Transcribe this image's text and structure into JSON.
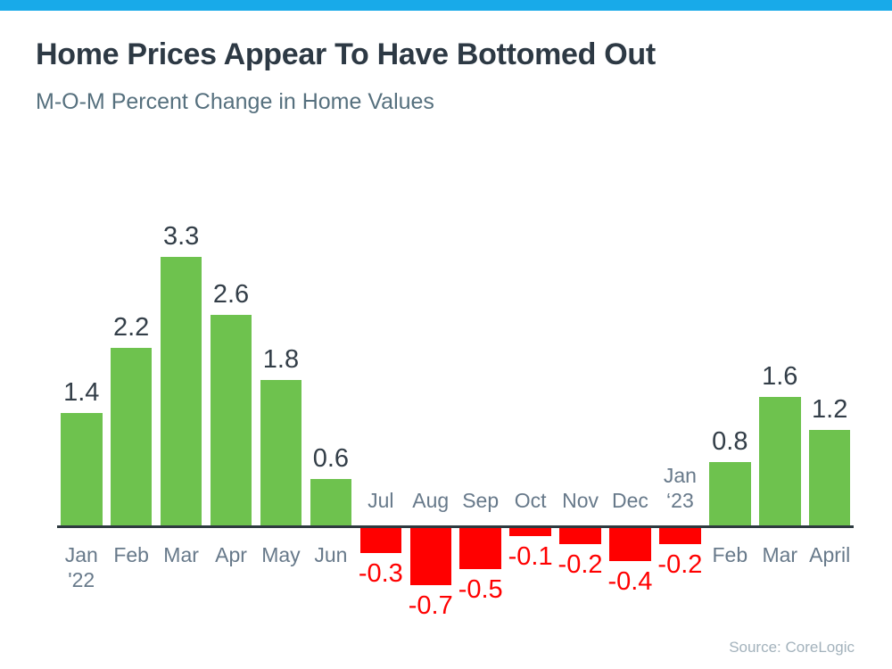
{
  "header": {
    "title": "Home Prices Appear To Have Bottomed Out",
    "subtitle": "M-O-M Percent Change in Home Values"
  },
  "footer": {
    "source": "Source: CoreLogic"
  },
  "colors": {
    "accent_top_bar": "#18aae9",
    "positive_bar": "#6ec24e",
    "negative_bar": "#ff0000",
    "title_text": "#2d3944",
    "subtitle_text": "#56707e",
    "month_label": "#67798a",
    "value_label_positive": "#333e48",
    "value_label_negative": "#ff0000",
    "axis_line": "#2e3a40",
    "source_text": "#a3b2bc"
  },
  "chart_data": {
    "type": "bar",
    "title": "Home Prices Appear To Have Bottomed Out",
    "subtitle": "M-O-M Percent Change in Home Values",
    "categories": [
      "Jan\n'22",
      "Feb",
      "Mar",
      "Apr",
      "May",
      "Jun",
      "Jul",
      "Aug",
      "Sep",
      "Oct",
      "Nov",
      "Dec",
      "Jan\n‘23",
      "Feb",
      "Mar",
      "April"
    ],
    "values": [
      1.4,
      2.2,
      3.3,
      2.6,
      1.8,
      0.6,
      -0.3,
      -0.7,
      -0.5,
      -0.1,
      -0.2,
      -0.4,
      -0.2,
      0.8,
      1.6,
      1.2
    ],
    "value_labels": [
      "1.4",
      "2.2",
      "3.3",
      "2.6",
      "1.8",
      "0.6",
      "-0.3",
      "-0.7",
      "-0.5",
      "-0.1",
      "-0.2",
      "-0.4",
      "-0.2",
      "0.8",
      "1.6",
      "1.2"
    ],
    "unit": "percent",
    "positive_color": "#6ec24e",
    "negative_color": "#ff0000",
    "grid": false,
    "legend": false,
    "xlabel": "",
    "ylabel": "",
    "source": "Source: CoreLogic"
  }
}
